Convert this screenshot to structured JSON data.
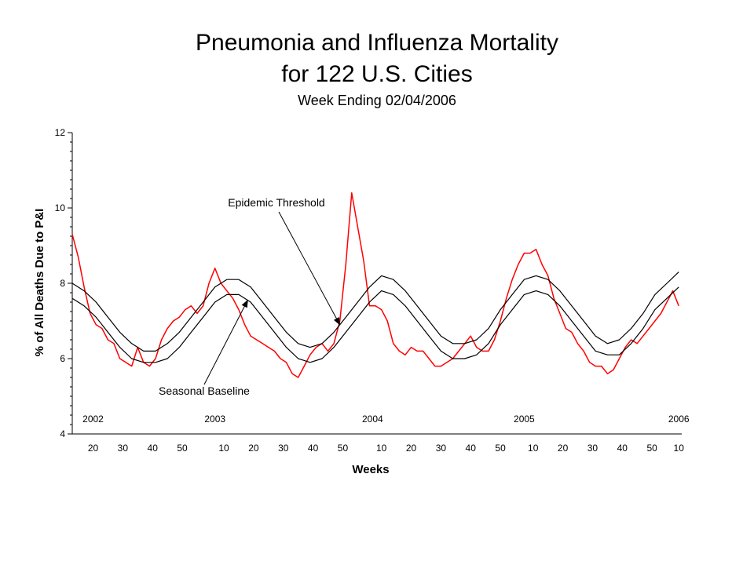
{
  "chart_data": {
    "type": "line",
    "title_line1": "Pneumonia and Influenza Mortality",
    "title_line2": "for 122 U.S. Cities",
    "subtitle": "Week Ending 02/04/2006",
    "ylabel": "% of All Deaths Due to P&I",
    "xlabel": "Weeks",
    "ylim": [
      4,
      12
    ],
    "y_ticks": [
      4,
      6,
      8,
      10,
      12
    ],
    "x_range_weeks": [
      0,
      205
    ],
    "year_labels": [
      {
        "label": "2002",
        "week": 7
      },
      {
        "label": "2003",
        "week": 48
      },
      {
        "label": "2004",
        "week": 101
      },
      {
        "label": "2005",
        "week": 152
      },
      {
        "label": "2006",
        "week": 204
      }
    ],
    "week_ticks": [
      {
        "label": "20",
        "week": 7
      },
      {
        "label": "30",
        "week": 17
      },
      {
        "label": "40",
        "week": 27
      },
      {
        "label": "50",
        "week": 37
      },
      {
        "label": "10",
        "week": 51
      },
      {
        "label": "20",
        "week": 61
      },
      {
        "label": "30",
        "week": 71
      },
      {
        "label": "40",
        "week": 81
      },
      {
        "label": "50",
        "week": 91
      },
      {
        "label": "10",
        "week": 104
      },
      {
        "label": "20",
        "week": 114
      },
      {
        "label": "30",
        "week": 124
      },
      {
        "label": "40",
        "week": 134
      },
      {
        "label": "50",
        "week": 144
      },
      {
        "label": "10",
        "week": 155
      },
      {
        "label": "20",
        "week": 165
      },
      {
        "label": "30",
        "week": 175
      },
      {
        "label": "40",
        "week": 185
      },
      {
        "label": "50",
        "week": 195
      },
      {
        "label": "10",
        "week": 204
      }
    ],
    "annotations": [
      {
        "text": "Epidemic Threshold",
        "target_series": "Epidemic Threshold",
        "target_week": 90
      },
      {
        "text": "Seasonal Baseline",
        "target_series": "Seasonal Baseline",
        "target_week": 59
      }
    ],
    "series": [
      {
        "name": "P&I Mortality",
        "color": "#ff0000",
        "x": [
          0,
          2,
          4,
          6,
          8,
          10,
          12,
          14,
          16,
          18,
          20,
          22,
          24,
          26,
          28,
          30,
          32,
          34,
          36,
          38,
          40,
          42,
          44,
          46,
          48,
          50,
          52,
          54,
          56,
          58,
          60,
          62,
          64,
          66,
          68,
          70,
          72,
          74,
          76,
          78,
          80,
          82,
          84,
          86,
          88,
          90,
          92,
          94,
          96,
          98,
          100,
          102,
          104,
          106,
          108,
          110,
          112,
          114,
          116,
          118,
          120,
          122,
          124,
          126,
          128,
          130,
          132,
          134,
          136,
          138,
          140,
          142,
          144,
          146,
          148,
          150,
          152,
          154,
          156,
          158,
          160,
          162,
          164,
          166,
          168,
          170,
          172,
          174,
          176,
          178,
          180,
          182,
          184,
          186,
          188,
          190,
          192,
          194,
          196,
          198,
          200,
          202,
          204
        ],
        "y": [
          9.3,
          8.7,
          7.9,
          7.2,
          6.9,
          6.8,
          6.5,
          6.4,
          6.0,
          5.9,
          5.8,
          6.3,
          5.9,
          5.8,
          6.0,
          6.5,
          6.8,
          7.0,
          7.1,
          7.3,
          7.4,
          7.2,
          7.4,
          8.0,
          8.4,
          8.0,
          7.8,
          7.6,
          7.3,
          6.9,
          6.6,
          6.5,
          6.4,
          6.3,
          6.2,
          6.0,
          5.9,
          5.6,
          5.5,
          5.8,
          6.1,
          6.3,
          6.4,
          6.2,
          6.4,
          7.0,
          8.5,
          10.4,
          9.5,
          8.6,
          7.4,
          7.4,
          7.3,
          7.0,
          6.4,
          6.2,
          6.1,
          6.3,
          6.2,
          6.2,
          6.0,
          5.8,
          5.8,
          5.9,
          6.0,
          6.2,
          6.4,
          6.6,
          6.3,
          6.2,
          6.2,
          6.5,
          7.0,
          7.6,
          8.1,
          8.5,
          8.8,
          8.8,
          8.9,
          8.5,
          8.2,
          7.6,
          7.2,
          6.8,
          6.7,
          6.4,
          6.2,
          5.9,
          5.8,
          5.8,
          5.6,
          5.7,
          6.0,
          6.3,
          6.5,
          6.4,
          6.6,
          6.8,
          7.0,
          7.2,
          7.5,
          7.8,
          7.4
        ]
      },
      {
        "name": "Epidemic Threshold",
        "color": "#000000",
        "x": [
          0,
          4,
          8,
          12,
          16,
          20,
          24,
          28,
          32,
          36,
          40,
          44,
          48,
          52,
          56,
          60,
          64,
          68,
          72,
          76,
          80,
          84,
          88,
          92,
          96,
          100,
          104,
          108,
          112,
          116,
          120,
          124,
          128,
          132,
          136,
          140,
          144,
          148,
          152,
          156,
          160,
          164,
          168,
          172,
          176,
          180,
          184,
          188,
          192,
          196,
          200,
          204
        ],
        "y": [
          8.0,
          7.8,
          7.5,
          7.1,
          6.7,
          6.4,
          6.2,
          6.2,
          6.4,
          6.7,
          7.1,
          7.5,
          7.9,
          8.1,
          8.1,
          7.9,
          7.5,
          7.1,
          6.7,
          6.4,
          6.3,
          6.4,
          6.7,
          7.1,
          7.5,
          7.9,
          8.2,
          8.1,
          7.8,
          7.4,
          7.0,
          6.6,
          6.4,
          6.4,
          6.5,
          6.8,
          7.3,
          7.7,
          8.1,
          8.2,
          8.1,
          7.8,
          7.4,
          7.0,
          6.6,
          6.4,
          6.5,
          6.8,
          7.2,
          7.7,
          8.0,
          8.3
        ]
      },
      {
        "name": "Seasonal Baseline",
        "color": "#000000",
        "x": [
          0,
          4,
          8,
          12,
          16,
          20,
          24,
          28,
          32,
          36,
          40,
          44,
          48,
          52,
          56,
          60,
          64,
          68,
          72,
          76,
          80,
          84,
          88,
          92,
          96,
          100,
          104,
          108,
          112,
          116,
          120,
          124,
          128,
          132,
          136,
          140,
          144,
          148,
          152,
          156,
          160,
          164,
          168,
          172,
          176,
          180,
          184,
          188,
          192,
          196,
          200,
          204
        ],
        "y": [
          7.6,
          7.4,
          7.1,
          6.7,
          6.3,
          6.0,
          5.9,
          5.9,
          6.0,
          6.3,
          6.7,
          7.1,
          7.5,
          7.7,
          7.7,
          7.5,
          7.1,
          6.7,
          6.3,
          6.0,
          5.9,
          6.0,
          6.3,
          6.7,
          7.1,
          7.5,
          7.8,
          7.7,
          7.4,
          7.0,
          6.6,
          6.2,
          6.0,
          6.0,
          6.1,
          6.4,
          6.9,
          7.3,
          7.7,
          7.8,
          7.7,
          7.4,
          7.0,
          6.6,
          6.2,
          6.1,
          6.1,
          6.4,
          6.8,
          7.3,
          7.6,
          7.9
        ]
      }
    ]
  }
}
